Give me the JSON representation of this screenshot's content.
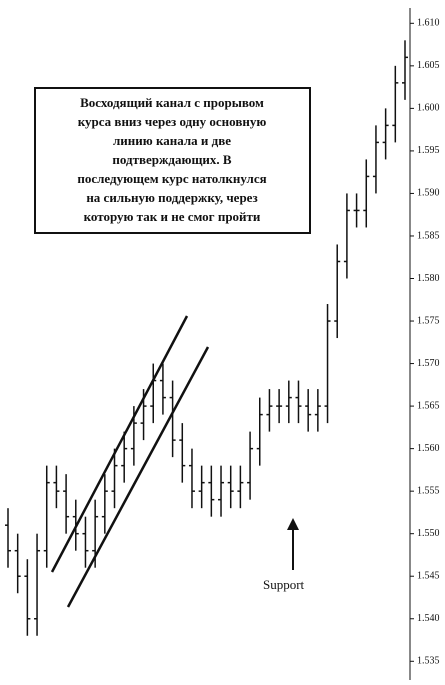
{
  "chart_data": {
    "type": "ohlc",
    "annotations": [
      "Восходящий канал с прорывом",
      "курса вниз через одну основную",
      "линию канала и две",
      "подтверждающих. В",
      "последующем курс натолкнулся",
      "на сильную поддержку, через",
      "которую так и не смог пройти"
    ],
    "support_label": "Support",
    "color": "#111111",
    "ylim": [
      1.5328,
      1.6118
    ],
    "yticks": [
      {
        "value": 1.61,
        "label": "1.610"
      },
      {
        "value": 1.605,
        "label": "1.605"
      },
      {
        "value": 1.6,
        "label": "1.600"
      },
      {
        "value": 1.595,
        "label": "1.595"
      },
      {
        "value": 1.59,
        "label": "1.590"
      },
      {
        "value": 1.585,
        "label": "1.585"
      },
      {
        "value": 1.58,
        "label": "1.580"
      },
      {
        "value": 1.575,
        "label": "1.575"
      },
      {
        "value": 1.57,
        "label": "1.570"
      },
      {
        "value": 1.565,
        "label": "1.565"
      },
      {
        "value": 1.56,
        "label": "1.560"
      },
      {
        "value": 1.555,
        "label": "1.555"
      },
      {
        "value": 1.55,
        "label": "1.550"
      },
      {
        "value": 1.545,
        "label": "1.545"
      },
      {
        "value": 1.54,
        "label": "1.540"
      },
      {
        "value": 1.535,
        "label": "1.535"
      }
    ],
    "open": [
      1.551,
      1.548,
      1.545,
      1.54,
      1.548,
      1.556,
      1.555,
      1.552,
      1.55,
      1.548,
      1.552,
      1.555,
      1.558,
      1.56,
      1.563,
      1.565,
      1.568,
      1.566,
      1.561,
      1.558,
      1.555,
      1.556,
      1.554,
      1.556,
      1.555,
      1.556,
      1.56,
      1.564,
      1.565,
      1.565,
      1.566,
      1.565,
      1.564,
      1.565,
      1.575,
      1.582,
      1.588,
      1.588,
      1.592,
      1.596,
      1.598,
      1.603
    ],
    "high": [
      1.553,
      1.55,
      1.547,
      1.55,
      1.558,
      1.558,
      1.557,
      1.554,
      1.552,
      1.554,
      1.557,
      1.56,
      1.562,
      1.565,
      1.567,
      1.57,
      1.57,
      1.568,
      1.563,
      1.56,
      1.558,
      1.558,
      1.558,
      1.558,
      1.558,
      1.562,
      1.566,
      1.567,
      1.567,
      1.568,
      1.568,
      1.567,
      1.567,
      1.577,
      1.584,
      1.59,
      1.59,
      1.594,
      1.598,
      1.6,
      1.605,
      1.608
    ],
    "low": [
      1.546,
      1.543,
      1.538,
      1.538,
      1.546,
      1.553,
      1.55,
      1.548,
      1.546,
      1.546,
      1.55,
      1.553,
      1.556,
      1.558,
      1.561,
      1.563,
      1.564,
      1.559,
      1.556,
      1.553,
      1.553,
      1.552,
      1.552,
      1.553,
      1.553,
      1.554,
      1.558,
      1.562,
      1.563,
      1.563,
      1.563,
      1.562,
      1.562,
      1.563,
      1.573,
      1.58,
      1.586,
      1.586,
      1.59,
      1.594,
      1.596,
      1.601
    ],
    "close": [
      1.548,
      1.545,
      1.54,
      1.548,
      1.556,
      1.555,
      1.552,
      1.55,
      1.548,
      1.552,
      1.555,
      1.558,
      1.56,
      1.563,
      1.565,
      1.568,
      1.566,
      1.561,
      1.558,
      1.555,
      1.556,
      1.554,
      1.556,
      1.555,
      1.556,
      1.56,
      1.564,
      1.565,
      1.565,
      1.566,
      1.565,
      1.564,
      1.565,
      1.575,
      1.582,
      1.588,
      1.588,
      1.592,
      1.596,
      1.598,
      1.603,
      1.606
    ]
  }
}
